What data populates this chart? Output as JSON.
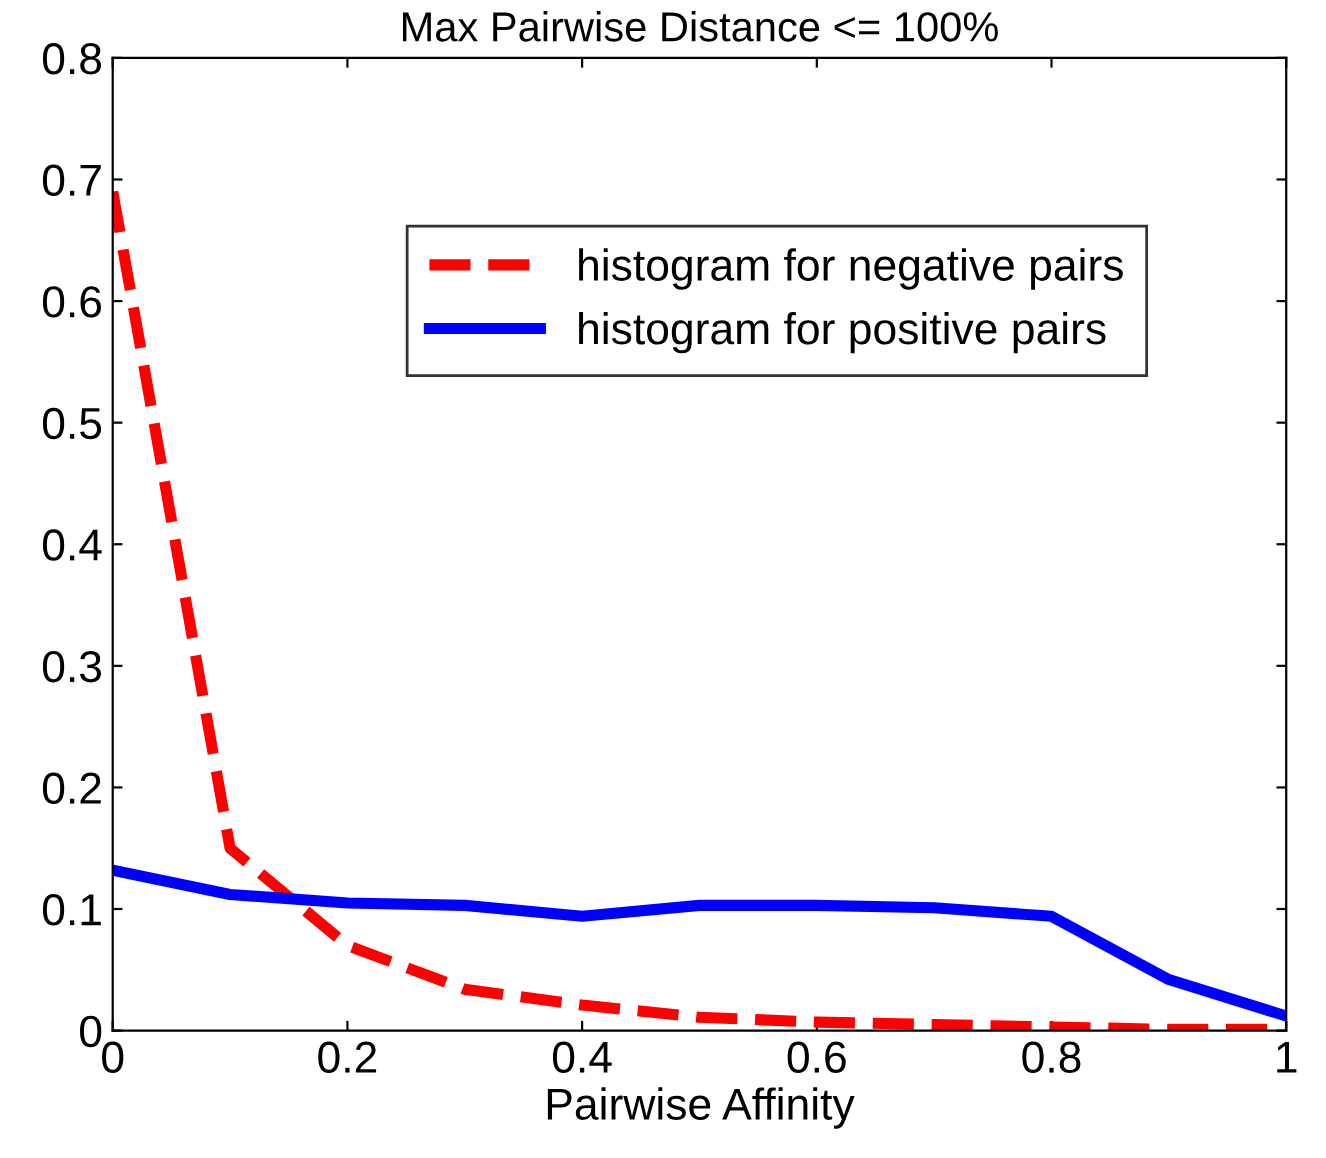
{
  "chart_data": {
    "type": "line",
    "title": "Max Pairwise Distance <= 100%",
    "xlabel": "Pairwise Affinity",
    "x": [
      0,
      0.1,
      0.2,
      0.3,
      0.4,
      0.5,
      0.6,
      0.7,
      0.8,
      0.9,
      1
    ],
    "series": [
      {
        "name": "histogram for negative pairs",
        "color": "#ff0000",
        "line_style": "dashed",
        "values": [
          0.69,
          0.15,
          0.07,
          0.034,
          0.021,
          0.011,
          0.007,
          0.005,
          0.003,
          0.001,
          0.001
        ]
      },
      {
        "name": "histogram for positive pairs",
        "color": "#0000ff",
        "line_style": "solid",
        "values": [
          0.132,
          0.112,
          0.105,
          0.103,
          0.094,
          0.103,
          0.103,
          0.101,
          0.094,
          0.042,
          0.012
        ]
      }
    ],
    "xlim": [
      0,
      1
    ],
    "ylim": [
      0,
      0.8
    ],
    "xticks": [
      0,
      0.2,
      0.4,
      0.6,
      0.8,
      1
    ],
    "yticks": [
      0,
      0.1,
      0.2,
      0.3,
      0.4,
      0.5,
      0.6,
      0.7,
      0.8
    ],
    "grid": false,
    "legend": "top right",
    "marker": "none"
  }
}
